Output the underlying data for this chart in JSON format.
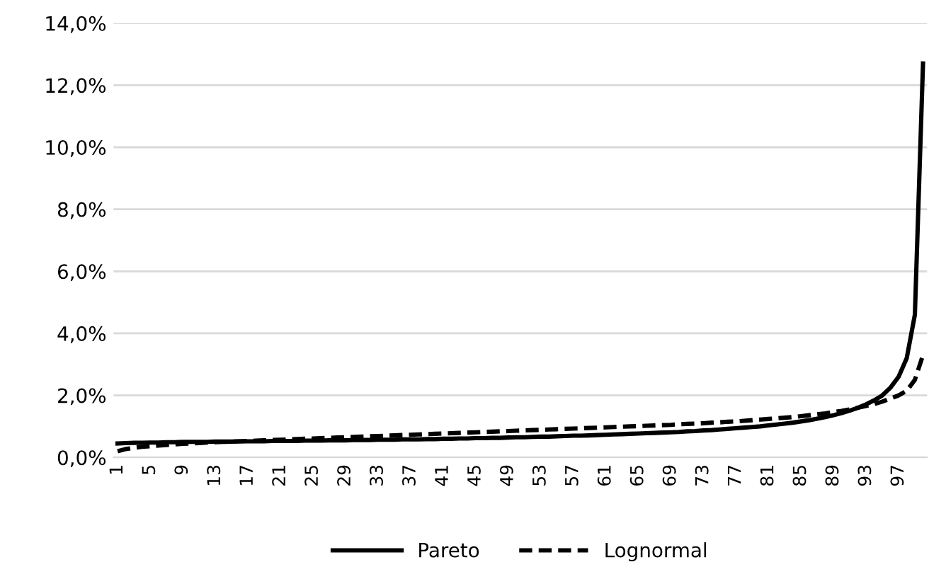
{
  "chart_data": {
    "type": "line",
    "categories": [
      "1",
      null,
      null,
      null,
      "5",
      null,
      null,
      null,
      "9",
      null,
      null,
      null,
      "13",
      null,
      null,
      null,
      "17",
      null,
      null,
      null,
      "21",
      null,
      null,
      null,
      "25",
      null,
      null,
      null,
      "29",
      null,
      null,
      null,
      "33",
      null,
      null,
      null,
      "37",
      null,
      null,
      null,
      "41",
      null,
      null,
      null,
      "45",
      null,
      null,
      null,
      "49",
      null,
      null,
      null,
      "53",
      null,
      null,
      null,
      "57",
      null,
      null,
      null,
      "61",
      null,
      null,
      null,
      "65",
      null,
      null,
      null,
      "69",
      null,
      null,
      null,
      "73",
      null,
      null,
      null,
      "77",
      null,
      null,
      null,
      "81",
      null,
      null,
      null,
      "85",
      null,
      null,
      null,
      "89",
      null,
      null,
      null,
      "93",
      null,
      null,
      null,
      "97",
      null,
      null,
      null
    ],
    "series": [
      {
        "name": "Pareto",
        "color": "#000000",
        "line_style": "solid",
        "values": [
          0.45,
          0.46,
          0.47,
          0.47,
          0.48,
          0.48,
          0.49,
          0.49,
          0.5,
          0.5,
          0.5,
          0.5,
          0.51,
          0.51,
          0.51,
          0.52,
          0.52,
          0.52,
          0.52,
          0.53,
          0.53,
          0.53,
          0.53,
          0.54,
          0.54,
          0.54,
          0.55,
          0.55,
          0.55,
          0.56,
          0.56,
          0.56,
          0.57,
          0.57,
          0.57,
          0.58,
          0.58,
          0.58,
          0.59,
          0.59,
          0.6,
          0.6,
          0.61,
          0.61,
          0.62,
          0.62,
          0.63,
          0.63,
          0.64,
          0.65,
          0.65,
          0.66,
          0.67,
          0.67,
          0.68,
          0.69,
          0.7,
          0.7,
          0.71,
          0.72,
          0.73,
          0.74,
          0.75,
          0.76,
          0.77,
          0.78,
          0.79,
          0.8,
          0.81,
          0.82,
          0.84,
          0.85,
          0.87,
          0.88,
          0.9,
          0.92,
          0.94,
          0.96,
          0.98,
          1.0,
          1.03,
          1.06,
          1.09,
          1.12,
          1.16,
          1.2,
          1.25,
          1.3,
          1.36,
          1.43,
          1.51,
          1.6,
          1.71,
          1.84,
          2.0,
          2.25,
          2.6,
          3.2,
          4.6,
          12.7
        ]
      },
      {
        "name": "Lognormal",
        "color": "#000000",
        "line_style": "dashed",
        "values": [
          0.2,
          0.27,
          0.31,
          0.34,
          0.36,
          0.38,
          0.4,
          0.42,
          0.44,
          0.45,
          0.46,
          0.48,
          0.49,
          0.5,
          0.51,
          0.52,
          0.53,
          0.54,
          0.55,
          0.56,
          0.57,
          0.58,
          0.59,
          0.6,
          0.61,
          0.62,
          0.63,
          0.64,
          0.65,
          0.66,
          0.67,
          0.68,
          0.69,
          0.7,
          0.71,
          0.72,
          0.73,
          0.74,
          0.75,
          0.76,
          0.77,
          0.78,
          0.79,
          0.8,
          0.81,
          0.82,
          0.83,
          0.84,
          0.85,
          0.86,
          0.87,
          0.88,
          0.89,
          0.9,
          0.91,
          0.92,
          0.93,
          0.94,
          0.95,
          0.96,
          0.97,
          0.98,
          0.99,
          1.0,
          1.01,
          1.02,
          1.03,
          1.04,
          1.05,
          1.07,
          1.08,
          1.09,
          1.1,
          1.12,
          1.13,
          1.15,
          1.16,
          1.18,
          1.2,
          1.22,
          1.24,
          1.26,
          1.28,
          1.3,
          1.33,
          1.36,
          1.39,
          1.42,
          1.46,
          1.5,
          1.55,
          1.6,
          1.66,
          1.72,
          1.8,
          1.9,
          2.0,
          2.15,
          2.5,
          3.3
        ]
      }
    ],
    "ylim": [
      0,
      14
    ],
    "yticks": [
      {
        "value": 0,
        "label": "0,0%"
      },
      {
        "value": 2,
        "label": "2,0%"
      },
      {
        "value": 4,
        "label": "4,0%"
      },
      {
        "value": 6,
        "label": "6,0%"
      },
      {
        "value": 8,
        "label": "8,0%"
      },
      {
        "value": 10,
        "label": "10,0%"
      },
      {
        "value": 12,
        "label": "12,0%"
      },
      {
        "value": 14,
        "label": "14,0%"
      }
    ],
    "grid": "y",
    "legend": "bottom",
    "marker": "none"
  }
}
